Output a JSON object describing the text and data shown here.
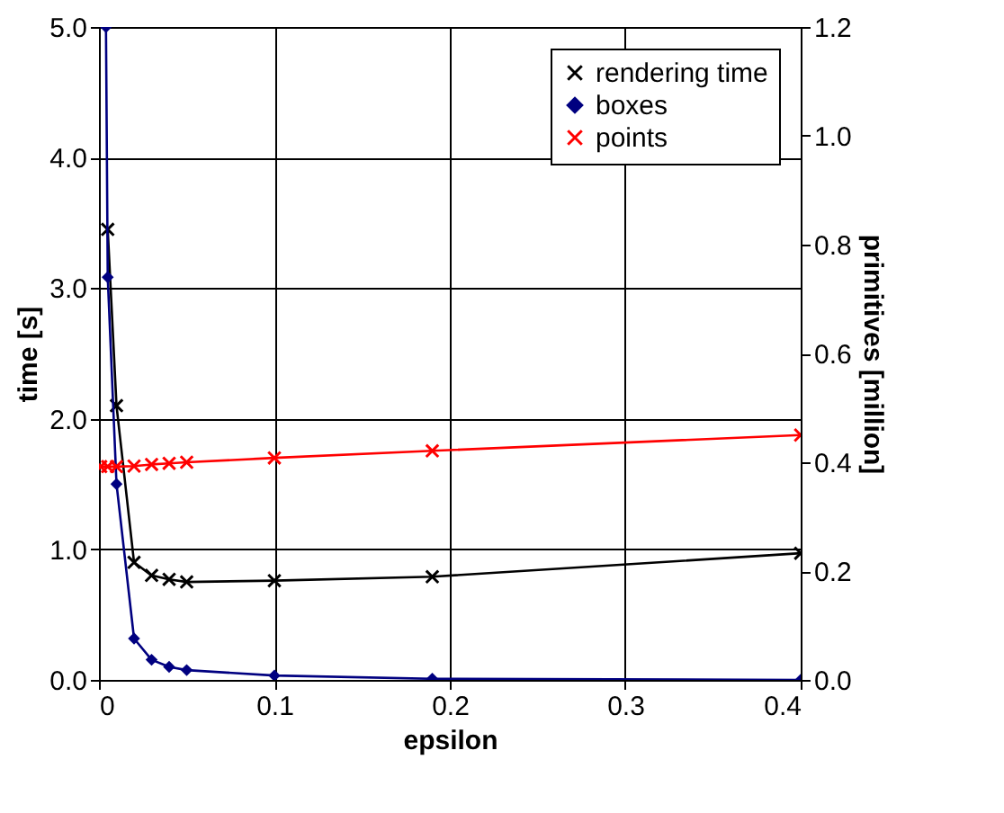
{
  "chart_data": {
    "type": "line",
    "xlabel": "epsilon",
    "ylabel": "time [s]",
    "y2label": "primitives [million]",
    "xlim": [
      0,
      0.4
    ],
    "xticks": [
      0,
      0.1,
      0.2,
      0.3,
      0.4
    ],
    "ylim": [
      0,
      5.0
    ],
    "yticks": [
      {
        "value": 0,
        "label": "0.0"
      },
      {
        "value": 1,
        "label": "1.0"
      },
      {
        "value": 2,
        "label": "2.0"
      },
      {
        "value": 3,
        "label": "3.0"
      },
      {
        "value": 4,
        "label": "4.0"
      },
      {
        "value": 5,
        "label": "5.0"
      }
    ],
    "y2lim": [
      0,
      1.2
    ],
    "y2ticks": [
      {
        "value": 0,
        "label": "0.0"
      },
      0.2,
      0.4,
      0.6,
      0.8,
      {
        "value": 1,
        "label": "1.0"
      },
      1.2
    ],
    "grid": true,
    "legend": "top right",
    "series": [
      {
        "name": "rendering time",
        "color": "#000000",
        "marker": "cross",
        "x": [
          0.005,
          0.01,
          0.02,
          0.03,
          0.04,
          0.05,
          0.1,
          0.19,
          0.4
        ],
        "values": [
          3.45,
          2.1,
          0.9,
          0.8,
          0.77,
          0.75,
          0.76,
          0.79,
          0.97
        ]
      },
      {
        "name": "boxes",
        "color": "#000080",
        "marker": "diamond",
        "axis": "y2",
        "x": [
          0.004,
          0.005,
          0.01,
          0.02,
          0.03,
          0.04,
          0.05,
          0.1,
          0.19,
          0.4
        ],
        "values": [
          1.2,
          0.74,
          0.36,
          0.076,
          0.037,
          0.024,
          0.018,
          0.008,
          0.002,
          0.0
        ]
      },
      {
        "name": "points",
        "color": "#ff0000",
        "marker": "cross",
        "axis": "y2",
        "x": [
          0.001,
          0.005,
          0.01,
          0.02,
          0.03,
          0.04,
          0.05,
          0.1,
          0.19,
          0.4
        ],
        "values": [
          0.392,
          0.392,
          0.392,
          0.393,
          0.396,
          0.398,
          0.4,
          0.408,
          0.421,
          0.45
        ]
      }
    ]
  }
}
